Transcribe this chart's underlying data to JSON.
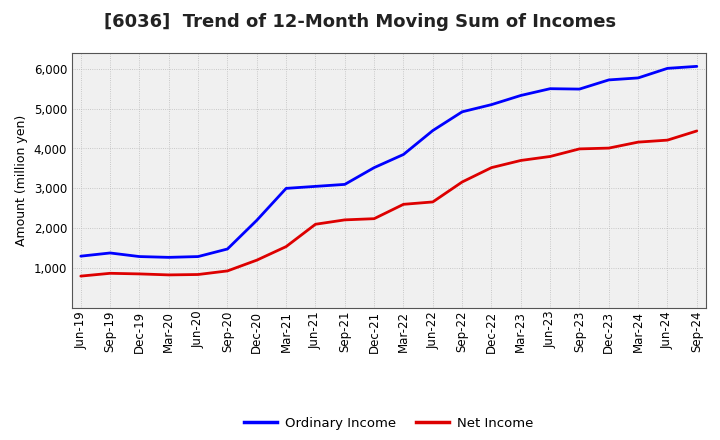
{
  "title": "[6036]  Trend of 12-Month Moving Sum of Incomes",
  "ylabel": "Amount (million yen)",
  "background_color": "#ffffff",
  "plot_bg_color": "#f0f0f0",
  "grid_color": "#bbbbbb",
  "x_labels": [
    "Jun-19",
    "Sep-19",
    "Dec-19",
    "Mar-20",
    "Jun-20",
    "Sep-20",
    "Dec-20",
    "Mar-21",
    "Jun-21",
    "Sep-21",
    "Dec-21",
    "Mar-22",
    "Jun-22",
    "Sep-22",
    "Dec-22",
    "Mar-23",
    "Jun-23",
    "Sep-23",
    "Dec-23",
    "Mar-24",
    "Jun-24",
    "Sep-24"
  ],
  "ordinary_income": [
    1300,
    1380,
    1290,
    1270,
    1290,
    1480,
    2200,
    3000,
    3050,
    3100,
    3520,
    3850,
    4450,
    4920,
    5100,
    5330,
    5500,
    5490,
    5720,
    5770,
    6010,
    6060
  ],
  "net_income": [
    800,
    870,
    855,
    830,
    840,
    930,
    1200,
    1540,
    2100,
    2210,
    2240,
    2600,
    2660,
    3160,
    3520,
    3700,
    3800,
    3990,
    4010,
    4160,
    4210,
    4440
  ],
  "ordinary_color": "#0000ff",
  "net_color": "#dd0000",
  "ylim": [
    0,
    6400
  ],
  "yticks": [
    1000,
    2000,
    3000,
    4000,
    5000,
    6000
  ],
  "legend_labels": [
    "Ordinary Income",
    "Net Income"
  ],
  "line_width": 2.0,
  "title_fontsize": 13,
  "title_fontweight": "bold",
  "ylabel_fontsize": 9,
  "tick_fontsize": 8.5,
  "legend_fontsize": 9.5
}
